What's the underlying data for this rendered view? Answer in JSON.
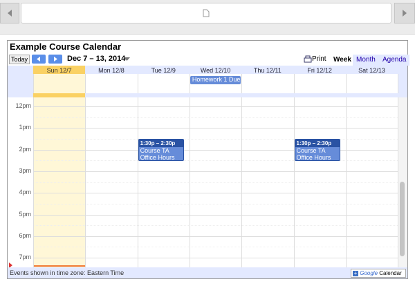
{
  "calendar": {
    "title": "Example Course Calendar",
    "toolbar": {
      "today": "Today",
      "range": "Dec 7 – 13, 2014",
      "print": "Print",
      "views": [
        "Week",
        "Month",
        "Agenda"
      ]
    },
    "days": [
      {
        "label": "Sun 12/7"
      },
      {
        "label": "Mon 12/8"
      },
      {
        "label": "Tue 12/9",
        "events": [
          {
            "time": "1:30p – 2:30p",
            "title": "Course TA Office Hours"
          }
        ]
      },
      {
        "label": "Wed 12/10",
        "all_day": "Homework 1 Due"
      },
      {
        "label": "Thu 12/11"
      },
      {
        "label": "Fri 12/12",
        "events": [
          {
            "time": "1:30p – 2:30p",
            "title": "Course TA Office Hours"
          }
        ]
      },
      {
        "label": "Sat 12/13"
      }
    ],
    "hours": [
      "12pm",
      "1pm",
      "2pm",
      "3pm",
      "4pm",
      "5pm",
      "6pm",
      "7pm"
    ],
    "footer": {
      "timezone": "Events shown in time zone: Eastern Time",
      "button_brand": "Google",
      "button_label": "Calendar"
    }
  }
}
